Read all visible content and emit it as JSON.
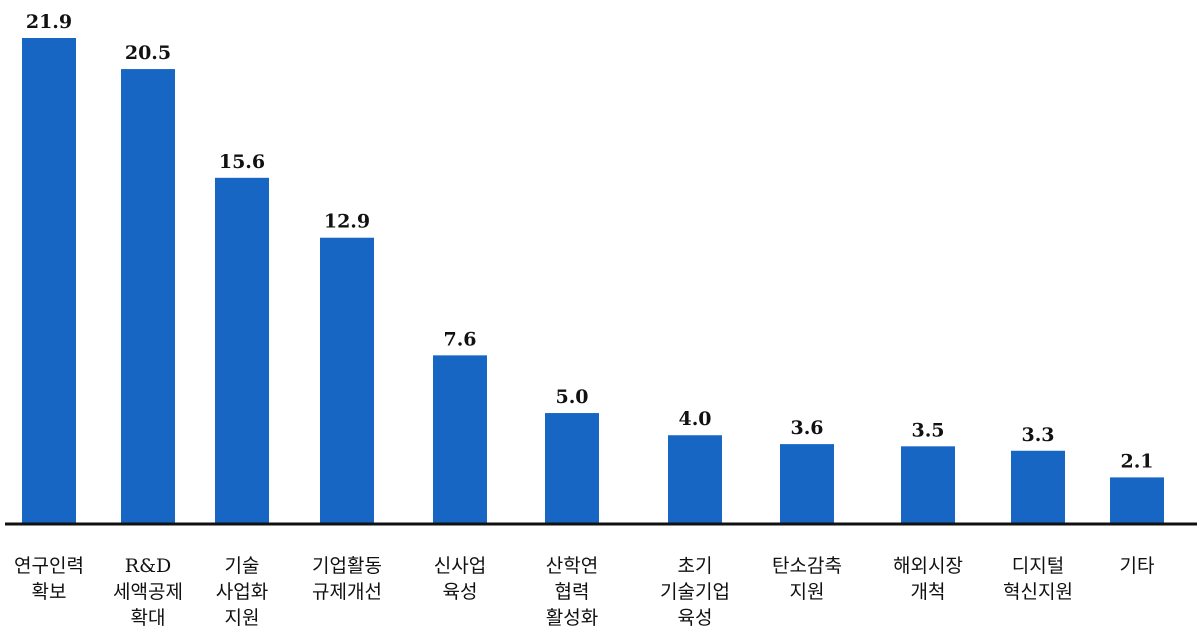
{
  "chart_data": {
    "type": "bar",
    "categories": [
      [
        "연구인력",
        "확보"
      ],
      [
        "R&D",
        "세액공제",
        "확대"
      ],
      [
        "기술",
        "사업화",
        "지원"
      ],
      [
        "기업활동",
        "규제개선"
      ],
      [
        "신사업",
        "육성"
      ],
      [
        "산학연",
        "협력",
        "활성화"
      ],
      [
        "초기",
        "기술기업",
        "육성"
      ],
      [
        "탄소감축",
        "지원"
      ],
      [
        "해외시장",
        "개척"
      ],
      [
        "디지털",
        "혁신지원"
      ],
      [
        "기타"
      ]
    ],
    "values": [
      21.9,
      20.5,
      15.6,
      12.9,
      7.6,
      5.0,
      4.0,
      3.6,
      3.5,
      3.3,
      2.1
    ],
    "value_labels": [
      "21.9",
      "20.5",
      "15.6",
      "12.9",
      "7.6",
      "5.0",
      "4.0",
      "3.6",
      "3.5",
      "3.3",
      "2.1"
    ],
    "ylim": [
      0,
      21.9
    ],
    "grid": false,
    "bar_color": "#1766c4",
    "axis_color": "#111111"
  }
}
